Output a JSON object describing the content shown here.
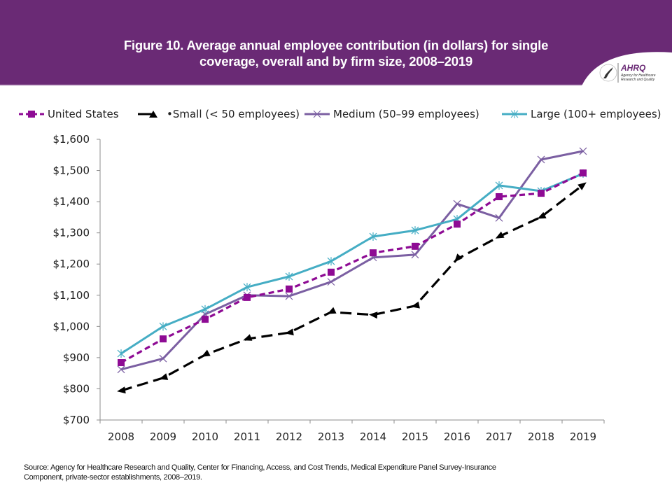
{
  "header": {
    "title_line1": "Figure 10. Average annual employee contribution (in dollars) for single",
    "title_line2": "coverage, overall and by firm size, 2008–2019",
    "logo": {
      "icon": "hhs-eagle-icon",
      "brand": "AHRQ",
      "tagline_line1": "Agency for Healthcare",
      "tagline_line2": "Research and Quality"
    },
    "colors": {
      "band": "#6a2a75"
    }
  },
  "source_line1": "Source: Agency for Healthcare Research and Quality, Center for Financing, Access, and Cost Trends, Medical Expenditure Panel Survey-Insurance",
  "source_line2": "Component, private-sector establishments, 2008–2019.",
  "chart_data": {
    "type": "line",
    "title": "Figure 10. Average annual employee contribution (in dollars) for single coverage, overall and by firm size, 2008–2019",
    "xlabel": "",
    "ylabel": "",
    "x": [
      "2008",
      "2009",
      "2010",
      "2011",
      "2012",
      "2013",
      "2014",
      "2015",
      "2016",
      "2017",
      "2018",
      "2019"
    ],
    "ylim": [
      700,
      1600
    ],
    "yticks": [
      700,
      800,
      900,
      1000,
      1100,
      1200,
      1300,
      1400,
      1500,
      1600
    ],
    "ytick_labels": [
      "$700",
      "$800",
      "$900",
      "$1,000",
      "$1,100",
      "$1,200",
      "$1,300",
      "$1,400",
      "$1,500",
      "$1,600"
    ],
    "grid": false,
    "legend_position": "top",
    "series": [
      {
        "name": "United States",
        "color": "#8e0b94",
        "line_style": "dashed",
        "marker": "square",
        "values": [
          884,
          960,
          1023,
          1093,
          1120,
          1174,
          1236,
          1257,
          1328,
          1416,
          1427,
          1492
        ]
      },
      {
        "name": "Small (< 50 employees)",
        "legend_label": "•Small (< 50 employees)",
        "color": "#000000",
        "line_style": "long-dashed",
        "marker": "triangle",
        "values": [
          794,
          835,
          909,
          960,
          980,
          1046,
          1037,
          1066,
          1216,
          1288,
          1351,
          1454
        ]
      },
      {
        "name": "Medium (50–99 employees)",
        "color": "#7b5fa2",
        "line_style": "solid",
        "marker": "x",
        "values": [
          862,
          897,
          1039,
          1100,
          1097,
          1143,
          1221,
          1230,
          1393,
          1348,
          1535,
          1562
        ]
      },
      {
        "name": "Large (100+ employees)",
        "color": "#45adc4",
        "line_style": "solid",
        "marker": "asterisk",
        "values": [
          913,
          1000,
          1055,
          1126,
          1160,
          1209,
          1288,
          1308,
          1344,
          1452,
          1434,
          1490
        ]
      }
    ]
  }
}
